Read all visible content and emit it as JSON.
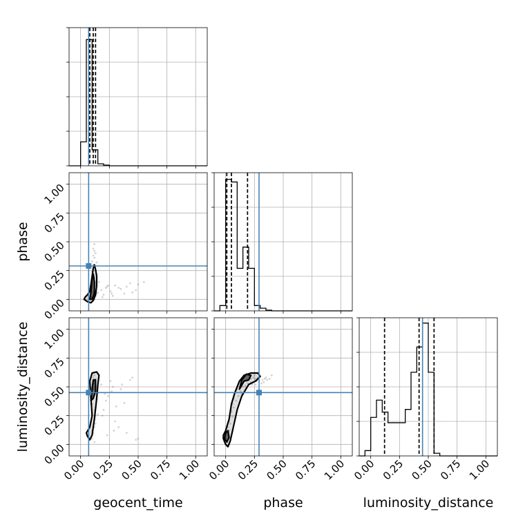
{
  "chart_data": {
    "type": "corner",
    "parameters": [
      "geocent_time",
      "phase",
      "luminosity_distance"
    ],
    "range": [
      -0.1,
      1.1
    ],
    "ticks": [
      0.0,
      0.25,
      0.5,
      0.75,
      1.0
    ],
    "tick_labels": [
      "0.00",
      "0.25",
      "0.50",
      "0.75",
      "1.00"
    ],
    "grid": true,
    "colors": {
      "truth": "#4682b4",
      "hist": "#000000",
      "points": "#808080"
    },
    "truths": {
      "geocent_time": 0.07,
      "phase": 0.29,
      "luminosity_distance": 0.45
    },
    "quantiles": {
      "geocent_time": [
        0.08,
        0.11,
        0.13
      ],
      "phase": [
        0.01,
        0.05,
        0.19
      ],
      "luminosity_distance": [
        0.12,
        0.42,
        0.55
      ]
    },
    "histograms": {
      "geocent_time": {
        "bin_edges": [
          0.0,
          0.05,
          0.1,
          0.15,
          0.2,
          0.25,
          0.3
        ],
        "counts": [
          0.18,
          0.95,
          0.12,
          0.015,
          0.005,
          0.0
        ]
      },
      "phase": {
        "bin_edges": [
          -0.05,
          0.0,
          0.05,
          0.1,
          0.15,
          0.2,
          0.25,
          0.3,
          0.35,
          0.4,
          0.45
        ],
        "counts": [
          0.04,
          0.99,
          0.97,
          0.32,
          0.48,
          0.32,
          0.04,
          0.02,
          0.005,
          0.0
        ]
      },
      "luminosity_distance": {
        "bin_edges": [
          -0.05,
          0.0,
          0.05,
          0.1,
          0.15,
          0.2,
          0.25,
          0.3,
          0.35,
          0.4,
          0.45,
          0.5,
          0.55,
          0.6,
          0.65,
          0.7
        ],
        "counts": [
          0.04,
          0.29,
          0.42,
          0.33,
          0.25,
          0.25,
          0.25,
          0.35,
          0.63,
          0.82,
          1.0,
          0.63,
          0.02,
          0.0,
          0.0
        ]
      }
    },
    "scatter": {
      "phase_vs_geocent_time": {
        "x": [
          0.1,
          0.11,
          0.12,
          0.09,
          0.13,
          0.12,
          0.1,
          0.11,
          0.14,
          0.13,
          0.12,
          0.11,
          0.1,
          0.12,
          0.13,
          0.11,
          0.12,
          0.1,
          0.14,
          0.15,
          0.18,
          0.22,
          0.26,
          0.3,
          0.35,
          0.4,
          0.45,
          0.5,
          0.55,
          0.2,
          0.24,
          0.28,
          0.33,
          0.38,
          0.43,
          0.48,
          0.16,
          0.19,
          0.23,
          0.27,
          0.12,
          0.11,
          0.13,
          0.12,
          0.1,
          0.14,
          0.11,
          0.12,
          0.13,
          0.12
        ],
        "y": [
          0.02,
          0.05,
          0.08,
          0.1,
          0.12,
          0.15,
          0.18,
          0.2,
          0.22,
          0.25,
          0.28,
          0.3,
          0.33,
          0.36,
          0.4,
          0.44,
          0.48,
          0.02,
          0.05,
          0.06,
          0.08,
          0.1,
          0.07,
          0.12,
          0.09,
          0.11,
          0.06,
          0.13,
          0.15,
          0.04,
          0.12,
          0.03,
          0.1,
          0.05,
          0.14,
          0.08,
          0.15,
          0.02,
          0.11,
          0.05,
          0.0,
          0.06,
          0.14,
          0.19,
          0.24,
          0.32,
          0.38,
          0.42,
          0.03,
          0.16
        ]
      },
      "luminosity_distance_vs_geocent_time": {
        "x": [
          0.1,
          0.11,
          0.12,
          0.09,
          0.13,
          0.12,
          0.1,
          0.11,
          0.14,
          0.13,
          0.12,
          0.11,
          0.1,
          0.12,
          0.13,
          0.15,
          0.18,
          0.22,
          0.26,
          0.3,
          0.35,
          0.4,
          0.45,
          0.5,
          0.2,
          0.24,
          0.28,
          0.33,
          0.38,
          0.43,
          0.16,
          0.19,
          0.23,
          0.27,
          0.31,
          0.12,
          0.11,
          0.13,
          0.1,
          0.14,
          0.11,
          0.12,
          0.13,
          0.12,
          0.09,
          0.15,
          0.21,
          0.29,
          0.36,
          0.48
        ],
        "y": [
          0.05,
          0.1,
          0.15,
          0.2,
          0.25,
          0.3,
          0.35,
          0.4,
          0.45,
          0.5,
          0.55,
          0.58,
          0.12,
          0.22,
          0.32,
          0.45,
          0.52,
          0.38,
          0.55,
          0.2,
          0.48,
          0.1,
          0.58,
          0.05,
          0.3,
          0.42,
          0.5,
          0.15,
          0.36,
          0.56,
          0.6,
          0.25,
          0.08,
          0.46,
          0.33,
          0.02,
          0.62,
          0.18,
          0.28,
          0.4,
          0.48,
          0.53,
          0.57,
          0.6,
          0.35,
          0.26,
          0.44,
          0.12,
          0.52,
          0.04
        ]
      },
      "luminosity_distance_vs_phase": {
        "x": [
          0.0,
          0.01,
          0.02,
          0.03,
          0.04,
          0.05,
          0.06,
          0.07,
          0.08,
          0.1,
          0.12,
          0.14,
          0.16,
          0.18,
          0.2,
          0.22,
          0.24,
          0.26,
          0.28,
          0.3,
          0.32,
          0.35,
          0.38,
          0.4,
          0.15,
          0.19,
          0.23,
          0.27,
          0.33,
          0.11,
          0.09,
          0.05,
          0.02,
          0.13,
          0.17,
          0.21,
          0.25,
          0.29,
          0.31,
          0.36,
          0.04,
          0.07,
          0.03,
          0.06,
          0.14,
          0.18,
          0.22,
          0.26,
          0.34,
          0.01
        ],
        "y": [
          0.05,
          0.1,
          0.15,
          0.2,
          0.25,
          0.3,
          0.35,
          0.4,
          0.45,
          0.48,
          0.5,
          0.52,
          0.55,
          0.55,
          0.56,
          0.57,
          0.58,
          0.57,
          0.58,
          0.59,
          0.56,
          0.58,
          0.57,
          0.6,
          0.5,
          0.53,
          0.52,
          0.55,
          0.54,
          0.42,
          0.38,
          0.28,
          0.08,
          0.46,
          0.51,
          0.59,
          0.6,
          0.55,
          0.53,
          0.56,
          0.18,
          0.32,
          0.12,
          0.24,
          0.44,
          0.49,
          0.54,
          0.52,
          0.57,
          0.02
        ]
      }
    },
    "contours": {
      "phase_vs_geocent_time": [
        {
          "x": [
            0.03,
            0.06,
            0.09,
            0.11,
            0.13,
            0.14,
            0.14,
            0.13,
            0.12,
            0.11,
            0.1,
            0.09,
            0.08,
            0.06,
            0.04
          ],
          "y": [
            0.0,
            -0.02,
            -0.03,
            -0.01,
            0.04,
            0.12,
            0.2,
            0.26,
            0.3,
            0.27,
            0.2,
            0.13,
            0.07,
            0.04,
            0.02
          ]
        },
        {
          "x": [
            0.08,
            0.1,
            0.12,
            0.12,
            0.11,
            0.1,
            0.09
          ],
          "y": [
            0.0,
            0.0,
            0.05,
            0.15,
            0.22,
            0.18,
            0.06
          ]
        }
      ],
      "luminosity_distance_vs_geocent_time": [
        {
          "x": [
            0.06,
            0.08,
            0.1,
            0.12,
            0.14,
            0.15,
            0.16,
            0.14,
            0.1,
            0.08,
            0.09,
            0.1,
            0.08,
            0.05
          ],
          "y": [
            0.07,
            0.04,
            0.08,
            0.22,
            0.4,
            0.52,
            0.6,
            0.63,
            0.62,
            0.55,
            0.4,
            0.25,
            0.15,
            0.1
          ]
        },
        {
          "x": [
            0.09,
            0.11,
            0.13,
            0.13,
            0.11,
            0.1
          ],
          "y": [
            0.38,
            0.4,
            0.46,
            0.56,
            0.56,
            0.48
          ]
        }
      ],
      "luminosity_distance_vs_phase": [
        {
          "x": [
            -0.02,
            0.0,
            0.02,
            0.04,
            0.06,
            0.1,
            0.14,
            0.2,
            0.26,
            0.3,
            0.28,
            0.22,
            0.16,
            0.12,
            0.08,
            0.05,
            0.03,
            0.0,
            -0.02
          ],
          "y": [
            0.05,
            0.0,
            -0.02,
            0.03,
            0.12,
            0.3,
            0.42,
            0.52,
            0.55,
            0.59,
            0.62,
            0.62,
            0.6,
            0.55,
            0.45,
            0.35,
            0.22,
            0.12,
            0.08
          ]
        },
        {
          "x": [
            0.12,
            0.16,
            0.2,
            0.22,
            0.18,
            0.14
          ],
          "y": [
            0.48,
            0.55,
            0.56,
            0.6,
            0.61,
            0.56
          ]
        },
        {
          "x": [
            -0.01,
            0.01,
            0.03,
            0.02,
            0.0
          ],
          "y": [
            0.05,
            0.02,
            0.06,
            0.12,
            0.1
          ]
        }
      ]
    }
  }
}
